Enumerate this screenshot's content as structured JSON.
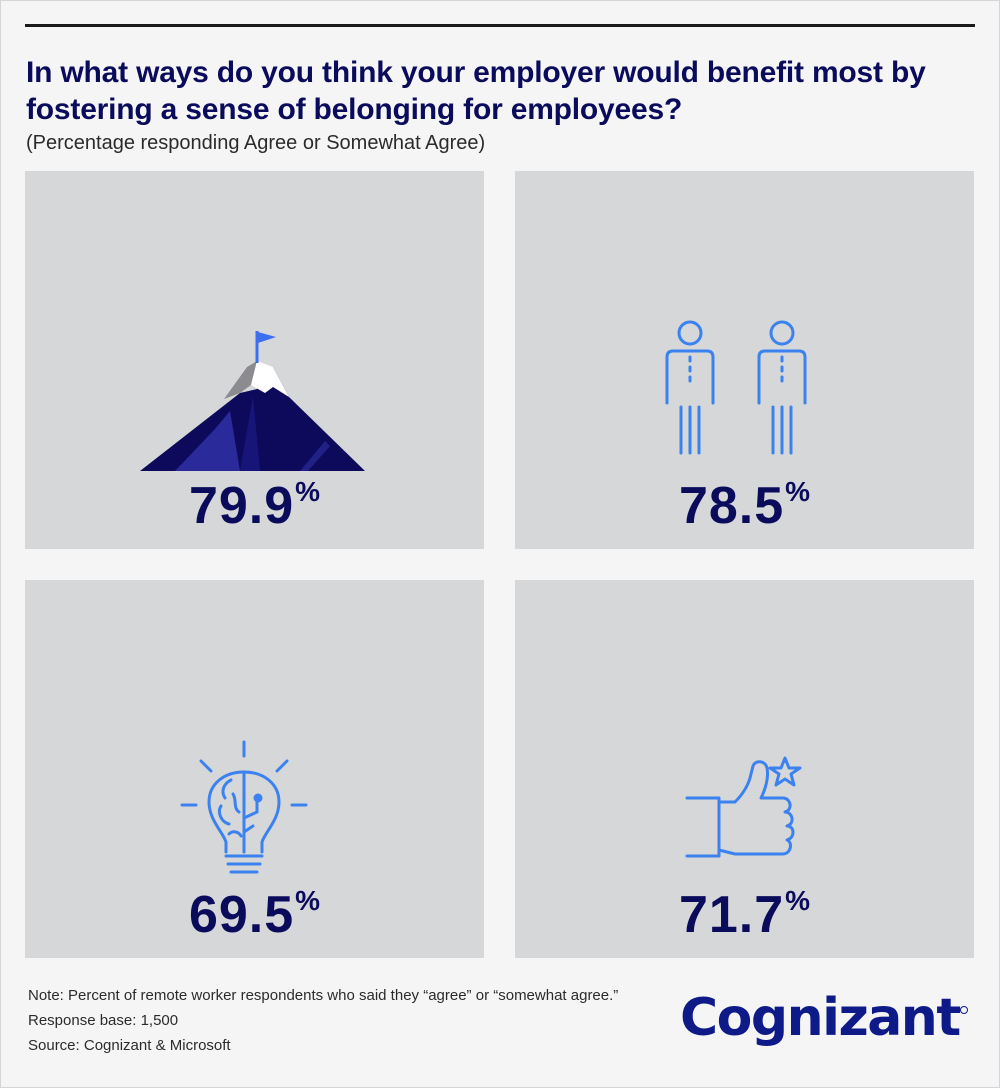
{
  "title": "In what ways do you think your employer would benefit most by fostering a sense of belonging for employees?",
  "subtitle": "(Percentage responding Agree or Somewhat Agree)",
  "chart_data": {
    "type": "table",
    "panels": [
      {
        "icon": "mountain-peak-flag-icon",
        "value": 79.9,
        "value_text": "79.9",
        "unit": "%"
      },
      {
        "icon": "two-people-icon",
        "value": 78.5,
        "value_text": "78.5",
        "unit": "%"
      },
      {
        "icon": "brain-lightbulb-icon",
        "value": 69.5,
        "value_text": "69.5",
        "unit": "%"
      },
      {
        "icon": "thumbs-up-star-icon",
        "value": 71.7,
        "value_text": "71.7",
        "unit": "%"
      }
    ]
  },
  "notes": {
    "note": "Note: Percent of remote worker respondents who said they “agree” or “somewhat agree.”",
    "response_base": "Response base: 1,500",
    "source": "Source: Cognizant & Microsoft"
  },
  "logo": "Cognizant",
  "colors": {
    "navy": "#0b0b5c",
    "icon_blue": "#3b82f0",
    "panel_bg": "#d6d7d9",
    "page_bg": "#f5f5f6"
  }
}
